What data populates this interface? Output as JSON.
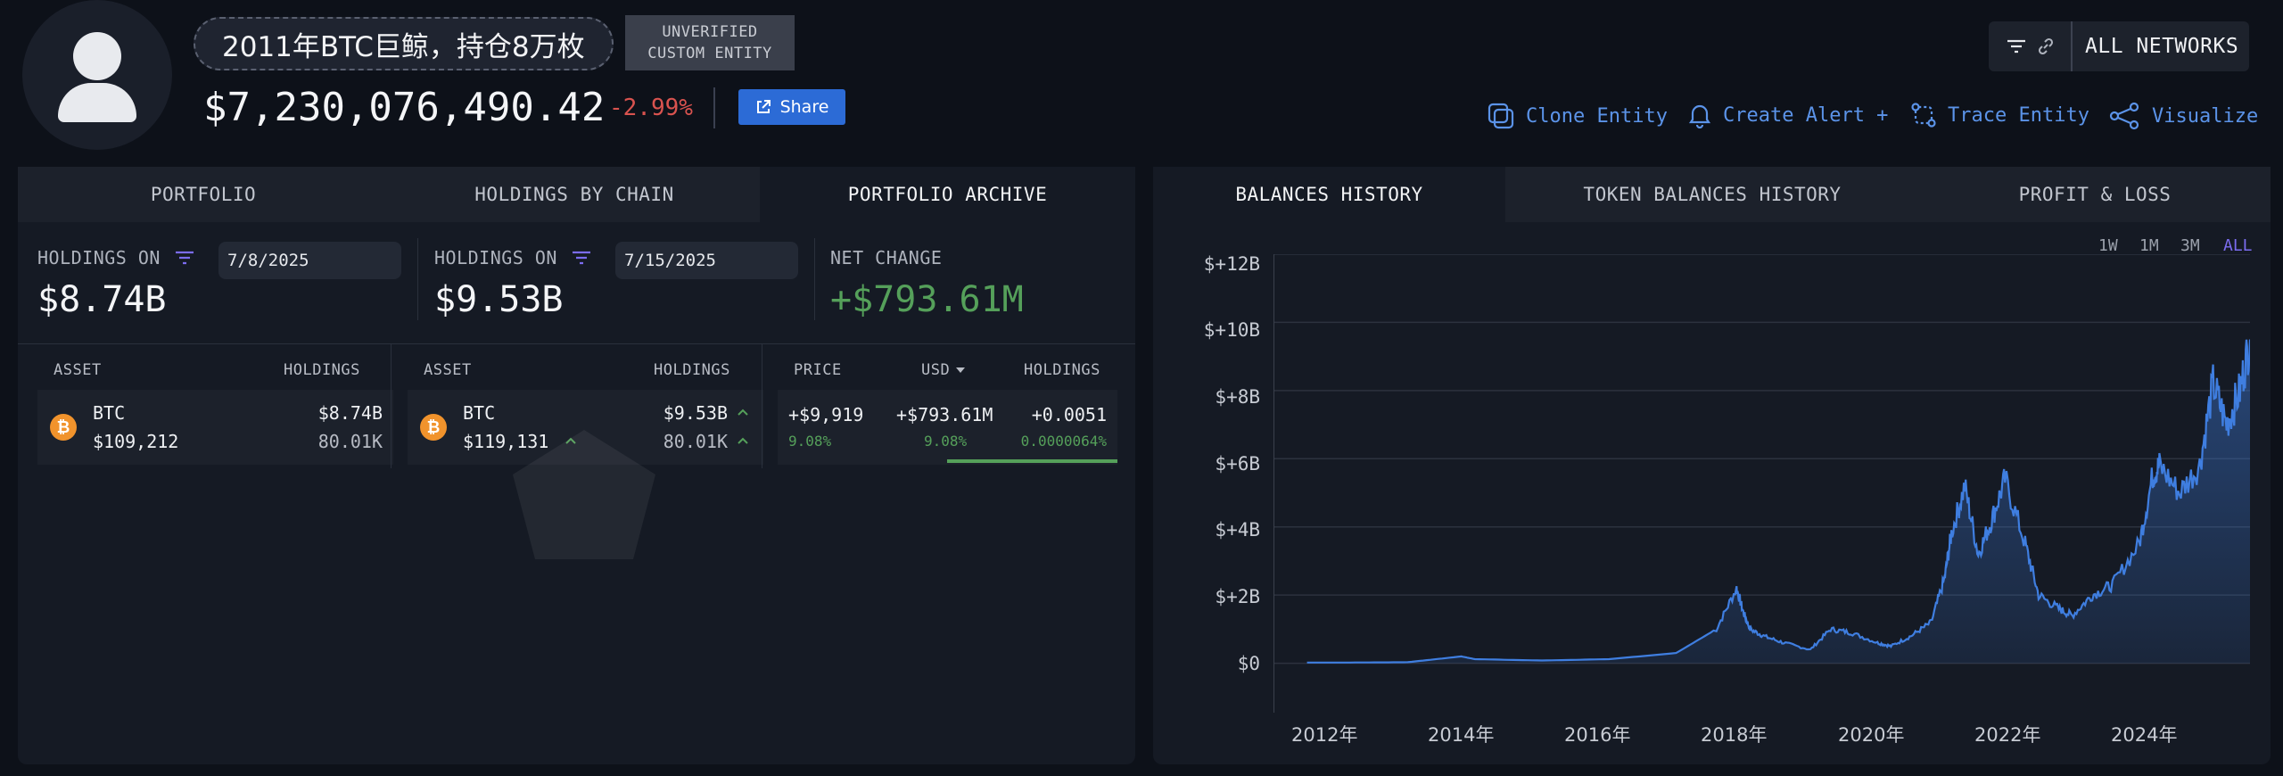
{
  "entity": {
    "name": "2011年BTC巨鲸，持仓8万枚",
    "badge_line1": "UNVERIFIED",
    "badge_line2": "CUSTOM ENTITY",
    "total_value": "$7,230,076,490.42",
    "change_pct": "-2.99%",
    "share_label": "Share"
  },
  "network": {
    "label": "ALL NETWORKS"
  },
  "actions": {
    "clone": "Clone Entity",
    "alert": "Create Alert +",
    "trace": "Trace Entity",
    "visualize": "Visualize"
  },
  "left_tabs": [
    "PORTFOLIO",
    "HOLDINGS BY CHAIN",
    "PORTFOLIO ARCHIVE"
  ],
  "archive": {
    "holdings_on_label": "HOLDINGS ON",
    "date_a": "7/8/2025",
    "date_b": "7/15/2025",
    "total_a": "$8.74B",
    "total_b": "$9.53B",
    "net_change_label": "NET CHANGE",
    "net_change": "+$793.61M",
    "headers": {
      "asset": "ASSET",
      "holdings": "HOLDINGS",
      "price": "PRICE",
      "usd": "USD",
      "holdings2": "HOLDINGS"
    },
    "row_a": {
      "symbol": "BTC",
      "value": "$8.74B",
      "price": "$109,212",
      "amount": "80.01K"
    },
    "row_b": {
      "symbol": "BTC",
      "value": "$9.53B",
      "price": "$119,131",
      "amount": "80.01K"
    },
    "change": {
      "price": "+$9,919",
      "price_pct": "9.08%",
      "usd": "+$793.61M",
      "usd_pct": "9.08%",
      "holdings": "+0.0051",
      "holdings_pct": "0.0000064%"
    }
  },
  "right_tabs": [
    "BALANCES HISTORY",
    "TOKEN BALANCES HISTORY",
    "PROFIT & LOSS"
  ],
  "ranges": [
    "1W",
    "1M",
    "3M",
    "ALL"
  ],
  "colors": {
    "accent_blue": "#5b93e8",
    "positive": "#55a05a",
    "negative": "#d9534f",
    "line": "#3f7ee0",
    "range_active": "#7b6cf0"
  },
  "chart_data": {
    "type": "area",
    "series": [
      {
        "x": [
          2011.5,
          2012.0,
          2013.0,
          2013.8,
          2014.0,
          2015.0,
          2016.0,
          2017.0,
          2017.6,
          2017.9,
          2018.0,
          2018.1,
          2018.3,
          2018.6,
          2019.0,
          2019.3,
          2019.6,
          2020.0,
          2020.2,
          2020.5,
          2020.8,
          2021.0,
          2021.1,
          2021.3,
          2021.5,
          2021.7,
          2021.9,
          2022.2,
          2022.4,
          2022.7,
          2022.9,
          2023.2,
          2023.5,
          2023.9,
          2024.1,
          2024.2,
          2024.5,
          2024.8,
          2025.0,
          2025.2,
          2025.4,
          2025.55
        ],
        "y": [
          0.02,
          0.02,
          0.03,
          0.2,
          0.12,
          0.08,
          0.12,
          0.3,
          1.0,
          2.2,
          1.5,
          1.0,
          0.8,
          0.6,
          0.4,
          1.0,
          0.9,
          0.6,
          0.5,
          0.8,
          1.2,
          2.5,
          3.8,
          5.2,
          3.2,
          4.2,
          5.4,
          3.5,
          2.0,
          1.6,
          1.4,
          2.0,
          2.3,
          3.5,
          5.5,
          5.8,
          5.0,
          5.8,
          8.2,
          7.0,
          8.0,
          9.5
        ]
      }
    ],
    "yticks": [
      "$+12B",
      "$+10B",
      "$+8B",
      "$+6B",
      "$+4B",
      "$+2B",
      "$0"
    ],
    "xticks": [
      "2012年",
      "2014年",
      "2016年",
      "2018年",
      "2020年",
      "2022年",
      "2024年"
    ],
    "ylim": [
      -1.45,
      12.0
    ],
    "xlim": [
      2011.0,
      2025.55
    ]
  }
}
